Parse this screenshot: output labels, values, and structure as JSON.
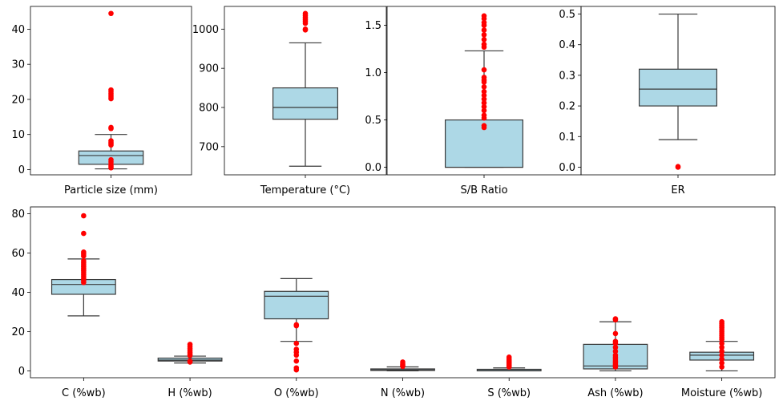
{
  "chart_data": [
    {
      "type": "box",
      "xlabel": "Particle size (mm)",
      "ylim": [
        -1.5,
        46.5
      ],
      "yticks": [
        0,
        10,
        20,
        30,
        40
      ],
      "boxes": [
        {
          "q1": 1.5,
          "median": 4.0,
          "q3": 5.3,
          "whisker_low": 0.2,
          "whisker_high": 10.0,
          "fliers": [
            44.5,
            22.7,
            22.2,
            21.7,
            21.2,
            20.7,
            20.2,
            12.0,
            11.7,
            8.2,
            7.8,
            7.4,
            7.0,
            2.8,
            2.2,
            1.6,
            1.0,
            0.5
          ]
        }
      ]
    },
    {
      "type": "box",
      "xlabel": "Temperature (°C)",
      "ylim": [
        628,
        1058
      ],
      "yticks": [
        700,
        800,
        900,
        1000
      ],
      "boxes": [
        {
          "q1": 770,
          "median": 800,
          "q3": 850,
          "whisker_low": 650,
          "whisker_high": 965,
          "fliers": [
            1040,
            1035,
            1030,
            1025,
            1020,
            1015,
            1000,
            998
          ]
        }
      ]
    },
    {
      "type": "box",
      "xlabel": "S/B Ratio",
      "ylim": [
        -0.08,
        1.7
      ],
      "yticks": [
        0.0,
        0.5,
        1.0,
        1.5
      ],
      "boxes": [
        {
          "q1": 0.0,
          "median": 0.0,
          "q3": 0.5,
          "whisker_low": 0.0,
          "whisker_high": 1.23,
          "fliers": [
            1.6,
            1.57,
            1.53,
            1.5,
            1.45,
            1.4,
            1.35,
            1.3,
            1.27,
            1.03,
            0.95,
            0.92,
            0.9,
            0.85,
            0.8,
            0.76,
            0.72,
            0.68,
            0.64,
            0.6,
            0.55,
            0.52,
            0.44,
            0.42
          ]
        }
      ]
    },
    {
      "type": "box",
      "xlabel": "ER",
      "ylim": [
        -0.025,
        0.525
      ],
      "yticks": [
        0.0,
        0.1,
        0.2,
        0.3,
        0.4,
        0.5
      ],
      "boxes": [
        {
          "q1": 0.2,
          "median": 0.255,
          "q3": 0.32,
          "whisker_low": 0.09,
          "whisker_high": 0.5,
          "fliers": [
            0.0,
            0.002
          ]
        }
      ]
    },
    {
      "type": "box",
      "xlabel": "",
      "ylim": [
        -3.5,
        83.5
      ],
      "yticks": [
        0,
        20,
        40,
        60,
        80
      ],
      "categories": [
        "C (%wb)",
        "H (%wb)",
        "O (%wb)",
        "N (%wb)",
        "S (%wb)",
        "Ash (%wb)",
        "Moisture (%wb)"
      ],
      "boxes": [
        {
          "q1": 39,
          "median": 44,
          "q3": 46.5,
          "whisker_low": 28,
          "whisker_high": 57,
          "fliers": [
            79,
            70,
            60.5,
            59.5,
            58.5,
            56,
            55,
            54,
            53,
            52,
            51,
            50,
            49,
            48,
            47,
            46,
            45
          ]
        },
        {
          "q1": 5,
          "median": 5.5,
          "q3": 6.5,
          "whisker_low": 4,
          "whisker_high": 7.5,
          "fliers": [
            13.5,
            12.5,
            11.5,
            10.5,
            9.5,
            8.5,
            7.8,
            5,
            4.5
          ]
        },
        {
          "q1": 26.5,
          "median": 38,
          "q3": 40.5,
          "whisker_low": 15,
          "whisker_high": 47,
          "fliers": [
            23.5,
            23,
            14,
            11,
            9.5,
            8,
            5,
            1.5,
            0.5
          ]
        },
        {
          "q1": 0.2,
          "median": 0.5,
          "q3": 1.0,
          "whisker_low": 0,
          "whisker_high": 2.0,
          "fliers": [
            4.5,
            3.5,
            2.8,
            2.3
          ]
        },
        {
          "q1": 0,
          "median": 0.2,
          "q3": 0.8,
          "whisker_low": 0,
          "whisker_high": 1.5,
          "fliers": [
            7,
            6,
            5.5,
            5,
            4.5,
            4,
            3.5,
            3,
            2.5,
            2
          ]
        },
        {
          "q1": 1,
          "median": 2.5,
          "q3": 13.5,
          "whisker_low": 0,
          "whisker_high": 25,
          "fliers": [
            26.5,
            26,
            19,
            15,
            14,
            12,
            10,
            8,
            7,
            6,
            5,
            4,
            3,
            2
          ]
        },
        {
          "q1": 5.5,
          "median": 8,
          "q3": 9.5,
          "whisker_low": 0,
          "whisker_high": 15,
          "fliers": [
            25,
            24,
            23,
            22,
            21,
            20,
            19,
            18,
            17,
            16,
            14,
            12,
            10,
            8,
            6,
            4,
            2
          ]
        }
      ]
    }
  ],
  "style": {
    "box_fill": "#add8e6",
    "box_edge": "#3a3a3a",
    "flier_color": "#ff0000"
  }
}
